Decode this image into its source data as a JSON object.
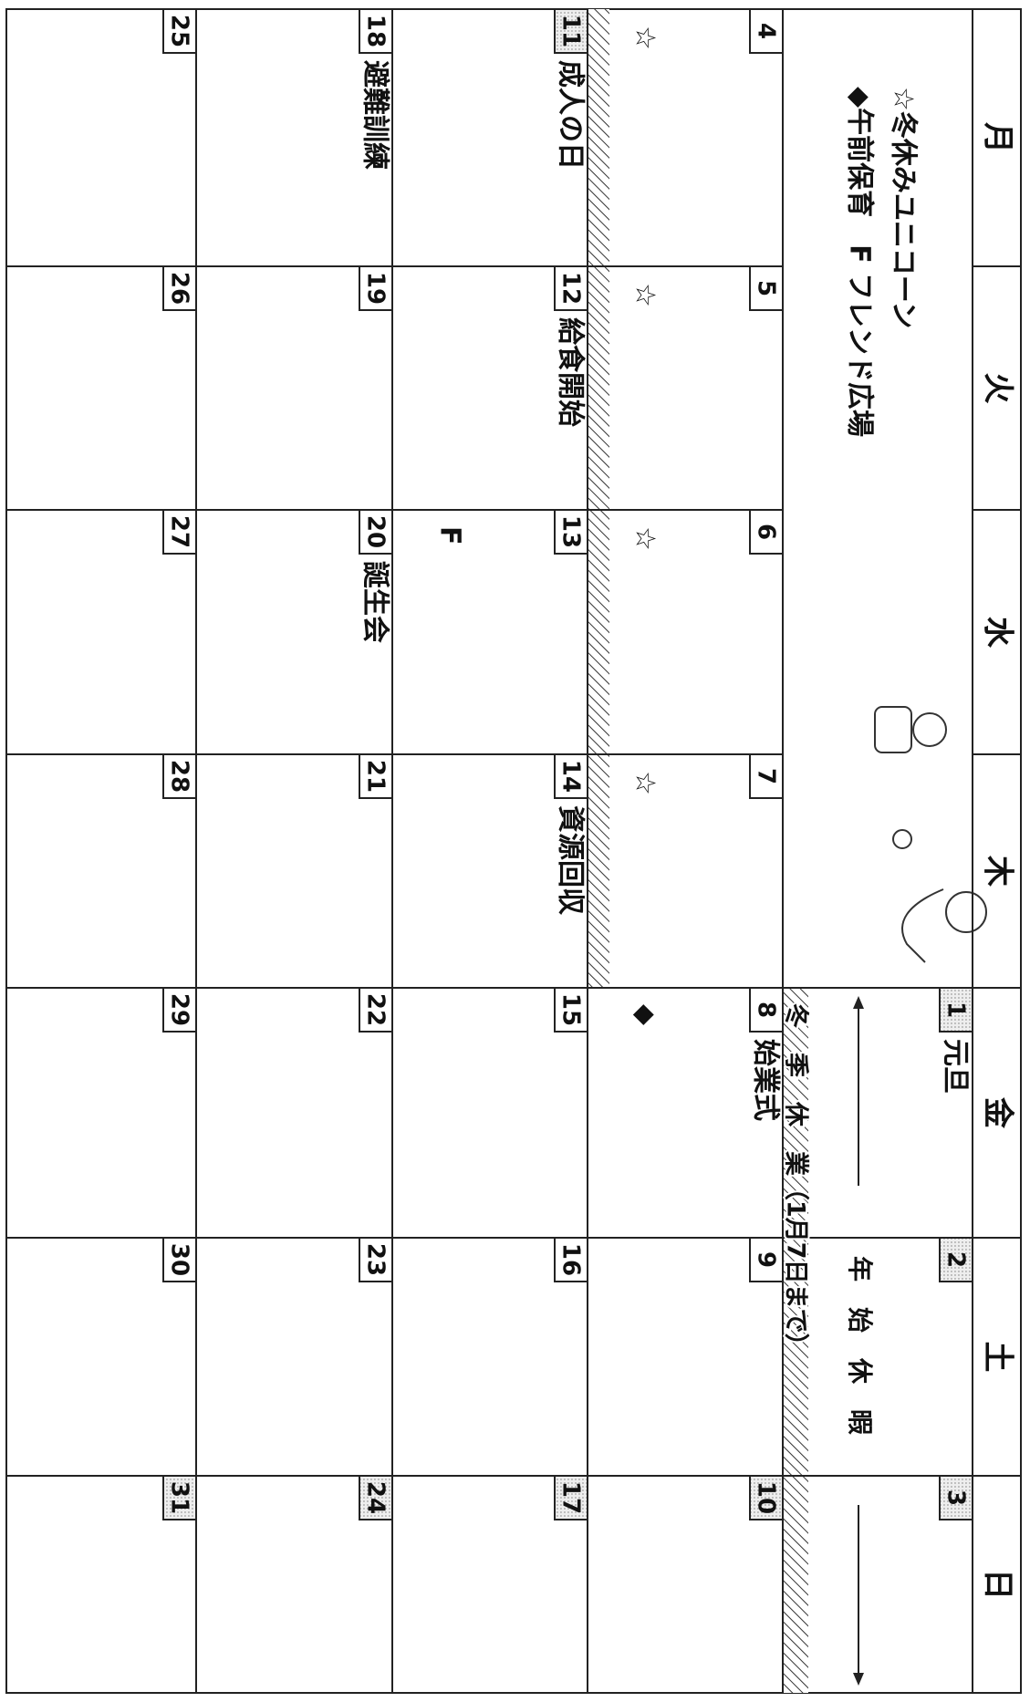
{
  "weekdays": [
    "月",
    "火",
    "水",
    "木",
    "金",
    "土",
    "日"
  ],
  "notes": [
    "☆冬休みユニコーン",
    "◆午前保育　F フレンド広場"
  ],
  "banners": [
    "年　始　休　暇",
    "冬　季　休　業（1月7日まで）"
  ],
  "weeks": [
    [
      null,
      null,
      null,
      null,
      {
        "day": "1",
        "event": "元旦",
        "shaded": true
      },
      {
        "day": "2",
        "shaded": true
      },
      {
        "day": "3",
        "shaded": true
      }
    ],
    [
      {
        "day": "4",
        "mark": "☆"
      },
      {
        "day": "5",
        "mark": "☆"
      },
      {
        "day": "6",
        "mark": "☆"
      },
      {
        "day": "7",
        "mark": "☆"
      },
      {
        "day": "8",
        "event": "始業式",
        "mark": "◆"
      },
      {
        "day": "9"
      },
      {
        "day": "10",
        "shaded": true
      }
    ],
    [
      {
        "day": "11",
        "event": "成人の日",
        "shaded": true
      },
      {
        "day": "12",
        "event": "給食開始"
      },
      {
        "day": "13",
        "mark": "F"
      },
      {
        "day": "14",
        "event": "資源回収"
      },
      {
        "day": "15"
      },
      {
        "day": "16"
      },
      {
        "day": "17",
        "shaded": true
      }
    ],
    [
      {
        "day": "18",
        "event": "避難訓練"
      },
      {
        "day": "19"
      },
      {
        "day": "20",
        "event": "誕生会"
      },
      {
        "day": "21"
      },
      {
        "day": "22"
      },
      {
        "day": "23"
      },
      {
        "day": "24",
        "shaded": true
      }
    ],
    [
      {
        "day": "25"
      },
      {
        "day": "26"
      },
      {
        "day": "27"
      },
      {
        "day": "28"
      },
      {
        "day": "29"
      },
      {
        "day": "30"
      },
      {
        "day": "31",
        "shaded": true
      }
    ]
  ]
}
